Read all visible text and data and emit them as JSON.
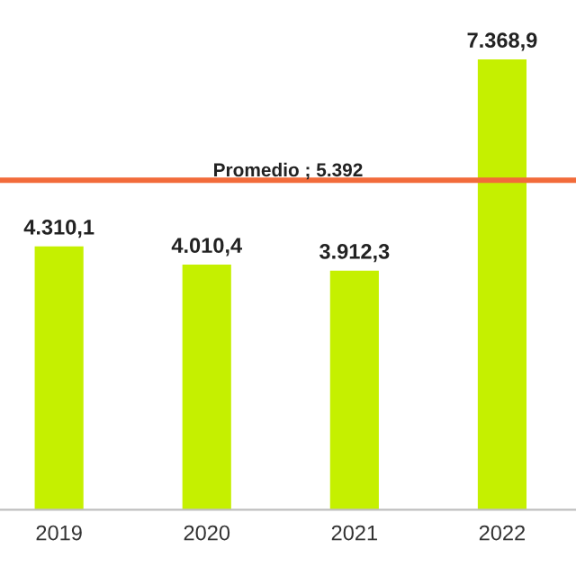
{
  "chart_data": {
    "type": "bar",
    "categories": [
      "2019",
      "2020",
      "2021",
      "2022"
    ],
    "values": [
      4310.1,
      4010.4,
      3912.3,
      7368.9
    ],
    "color": "#c5f000",
    "value_labels": [
      "4.310,1",
      "4.010,4",
      "3.912,3",
      "7.368,9"
    ],
    "ref_lines": [
      {
        "axis": "y",
        "value": 5392,
        "label": "Promedio ; 5.392",
        "color": "#f26b3a"
      }
    ],
    "grid": false,
    "legend": false
  }
}
